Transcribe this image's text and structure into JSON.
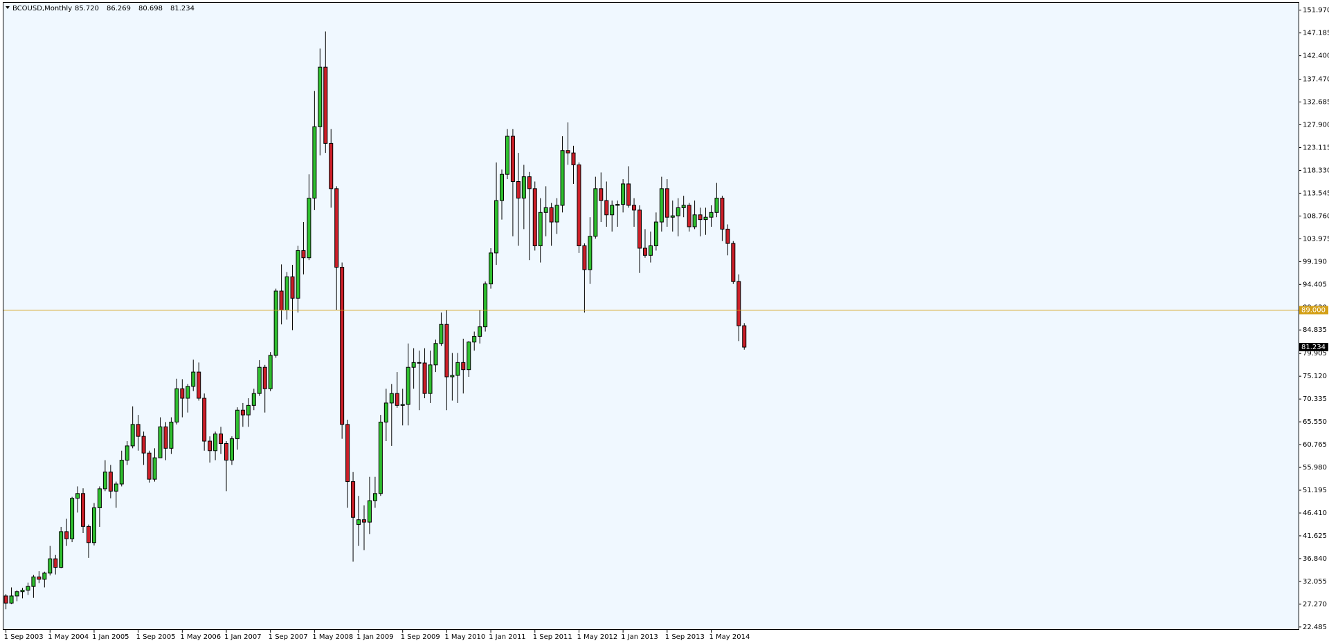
{
  "chart_data": {
    "type": "candlestick",
    "header": {
      "symbol": "BCOUSD,Monthly",
      "prices": [
        "85.720",
        "86.269",
        "80.698",
        "81.234"
      ]
    },
    "categories": [
      "1 Sep 2003",
      null,
      null,
      null,
      null,
      null,
      null,
      null,
      "1 May 2004",
      null,
      null,
      null,
      null,
      null,
      null,
      null,
      "1 Jan 2005",
      null,
      null,
      null,
      null,
      null,
      null,
      null,
      "1 Sep 2005",
      null,
      null,
      null,
      null,
      null,
      null,
      null,
      "1 May 2006",
      null,
      null,
      null,
      null,
      null,
      null,
      null,
      "1 Jan 2007",
      null,
      null,
      null,
      null,
      null,
      null,
      null,
      "1 Sep 2007",
      null,
      null,
      null,
      null,
      null,
      null,
      null,
      "1 May 2008",
      null,
      null,
      null,
      null,
      null,
      null,
      null,
      "1 Jan 2009",
      null,
      null,
      null,
      null,
      null,
      null,
      null,
      "1 Sep 2009",
      null,
      null,
      null,
      null,
      null,
      null,
      null,
      "1 May 2010",
      null,
      null,
      null,
      null,
      null,
      null,
      null,
      "1 Jan 2011",
      null,
      null,
      null,
      null,
      null,
      null,
      null,
      "1 Sep 2011",
      null,
      null,
      null,
      null,
      null,
      null,
      null,
      "1 May 2012",
      null,
      null,
      null,
      null,
      null,
      null,
      null,
      "1 Jan 2013",
      null,
      null,
      null,
      null,
      null,
      null,
      null,
      "1 Sep 2013",
      null,
      null,
      null,
      null,
      null,
      null,
      null,
      "1 May 2014",
      null,
      null,
      null,
      null,
      null,
      null
    ],
    "open": [
      29.0,
      27.5,
      29.0,
      29.9,
      30.2,
      31.0,
      33.0,
      32.5,
      33.8,
      36.8,
      35.0,
      42.5,
      41.0,
      49.5,
      50.5,
      43.6,
      40.2,
      47.5,
      51.5,
      55.0,
      51.0,
      52.5,
      57.5,
      60.5,
      65.0,
      62.5,
      59.0,
      53.5,
      58.0,
      64.5,
      60.0,
      65.5,
      72.5,
      70.5,
      73.0,
      76.0,
      70.5,
      61.5,
      59.5,
      63.0,
      61.0,
      57.5,
      62.0,
      68.0,
      67.0,
      69.0,
      71.5,
      77.0,
      72.5,
      79.5,
      93.0,
      89.0,
      96.0,
      91.5,
      101.5,
      100.0,
      112.5,
      127.5,
      140.0,
      124.0,
      114.5,
      98.0,
      65.0,
      53.0,
      44.0,
      45.0,
      44.5,
      49.0,
      50.5,
      65.5,
      69.5,
      71.5,
      69.0,
      69.2,
      77.0,
      78.0,
      77.9,
      71.5,
      77.5,
      82.0,
      86.0,
      75.0,
      75.3,
      78.0,
      76.5,
      82.3,
      83.5,
      85.5,
      94.5,
      101.0,
      112.0,
      117.5,
      125.5,
      116.0,
      112.5,
      117.0,
      114.5,
      102.5,
      109.5,
      110.5,
      107.5,
      111.0,
      122.5,
      122.0,
      119.5,
      102.5,
      97.5,
      104.5,
      114.5,
      112.0,
      109.0,
      111.0,
      111.2,
      115.5,
      111.0,
      110.0,
      102.0,
      100.5,
      102.5,
      107.5,
      114.5,
      108.5,
      108.8,
      110.5,
      111.0,
      106.5,
      109.0,
      108.0,
      108.5,
      109.5,
      112.5,
      106.0,
      103.0,
      95.0,
      85.72
    ],
    "high": [
      29.4,
      30.8,
      30.2,
      30.7,
      31.8,
      33.4,
      34.2,
      34.1,
      39.5,
      37.6,
      43.5,
      45.2,
      49.8,
      52.0,
      51.6,
      44.0,
      48.5,
      52.0,
      57.5,
      56.5,
      53.0,
      59.5,
      61.5,
      68.8,
      67.0,
      63.5,
      59.5,
      60.0,
      66.5,
      65.5,
      66.5,
      74.6,
      74.5,
      73.5,
      78.6,
      78.0,
      71.5,
      62.5,
      63.5,
      64.5,
      61.5,
      62.5,
      68.6,
      69.5,
      70.5,
      72.5,
      78.5,
      77.5,
      80.2,
      93.5,
      98.6,
      97.0,
      98.5,
      102.5,
      107.5,
      117.5,
      135.0,
      143.9,
      147.5,
      127.0,
      115.0,
      99.0,
      66.0,
      55.0,
      50.0,
      48.0,
      54.0,
      54.0,
      67.0,
      72.5,
      73.5,
      76.0,
      72.5,
      82.0,
      81.0,
      80.5,
      81.0,
      80.5,
      82.8,
      88.5,
      89.0,
      80.0,
      80.0,
      83.0,
      82.5,
      84.5,
      89.0,
      95.0,
      102.0,
      120.0,
      118.5,
      127.0,
      127.0,
      122.0,
      119.5,
      118.0,
      116.0,
      112.5,
      115.0,
      111.5,
      112.5,
      125.5,
      128.4,
      123.5,
      120.0,
      103.0,
      108.5,
      117.0,
      117.9,
      116.0,
      112.0,
      112.0,
      116.5,
      119.2,
      112.5,
      111.0,
      106.0,
      105.5,
      109.5,
      117.0,
      116.5,
      112.0,
      112.5,
      113.0,
      111.5,
      112.0,
      110.5,
      110.5,
      111.0,
      115.7,
      113.0,
      107.0,
      103.5,
      96.5,
      86.269
    ],
    "low": [
      26.2,
      27.3,
      27.9,
      28.5,
      29.2,
      28.6,
      31.7,
      30.8,
      33.3,
      33.5,
      34.8,
      39.5,
      40.3,
      46.5,
      42.2,
      37.0,
      39.6,
      43.5,
      51.0,
      49.5,
      47.5,
      52.0,
      56.5,
      60.0,
      59.5,
      56.5,
      52.8,
      53.0,
      58.0,
      57.5,
      58.8,
      65.0,
      66.5,
      67.5,
      72.0,
      70.0,
      59.5,
      57.0,
      57.5,
      58.8,
      51.0,
      56.5,
      59.7,
      64.5,
      64.5,
      68.0,
      71.0,
      67.5,
      72.0,
      79.0,
      86.0,
      87.0,
      84.8,
      88.5,
      96.5,
      99.5,
      110.0,
      121.5,
      122.0,
      110.5,
      89.0,
      62.0,
      47.5,
      36.2,
      39.5,
      38.6,
      42.0,
      47.5,
      50.0,
      61.5,
      60.5,
      68.5,
      64.8,
      64.8,
      72.5,
      68.0,
      70.5,
      69.5,
      76.0,
      81.5,
      68.0,
      70.0,
      69.5,
      71.5,
      75.0,
      80.5,
      82.0,
      84.5,
      93.5,
      98.5,
      108.0,
      116.5,
      104.5,
      102.5,
      106.0,
      99.5,
      101.5,
      99.0,
      104.5,
      102.5,
      105.0,
      109.5,
      119.5,
      115.5,
      101.0,
      88.5,
      94.5,
      104.0,
      107.5,
      106.5,
      105.5,
      106.5,
      109.5,
      110.5,
      106.5,
      96.8,
      100.0,
      99.0,
      101.5,
      105.5,
      106.5,
      105.5,
      104.5,
      108.5,
      105.5,
      106.0,
      104.5,
      104.8,
      106.5,
      108.5,
      103.5,
      100.5,
      94.5,
      82.5,
      80.698
    ],
    "close": [
      27.5,
      29.0,
      29.9,
      30.2,
      31.0,
      33.0,
      32.5,
      33.8,
      36.8,
      35.0,
      42.5,
      41.0,
      49.5,
      50.5,
      43.6,
      40.2,
      47.5,
      51.5,
      55.0,
      51.0,
      52.5,
      57.5,
      60.5,
      65.0,
      62.5,
      59.0,
      53.5,
      58.0,
      64.5,
      60.0,
      65.5,
      72.5,
      70.5,
      73.0,
      76.0,
      70.5,
      61.5,
      59.5,
      63.0,
      61.0,
      57.5,
      62.0,
      68.0,
      67.0,
      69.0,
      71.5,
      77.0,
      72.5,
      79.5,
      93.0,
      89.0,
      96.0,
      91.5,
      101.5,
      100.0,
      112.5,
      127.5,
      140.0,
      124.0,
      114.5,
      98.0,
      65.0,
      53.0,
      45.5,
      45.0,
      44.5,
      49.0,
      50.5,
      65.5,
      69.5,
      71.5,
      69.0,
      69.2,
      77.0,
      78.0,
      77.9,
      71.5,
      77.5,
      82.0,
      86.0,
      75.0,
      75.3,
      78.0,
      76.5,
      82.3,
      83.5,
      85.5,
      94.5,
      101.0,
      112.0,
      117.5,
      125.5,
      116.0,
      112.5,
      117.0,
      114.5,
      102.5,
      109.5,
      110.5,
      107.5,
      111.0,
      122.5,
      122.0,
      119.5,
      102.5,
      97.5,
      104.5,
      114.5,
      112.0,
      109.0,
      111.0,
      111.2,
      115.5,
      111.0,
      110.0,
      102.0,
      100.5,
      102.5,
      107.5,
      114.5,
      108.5,
      108.8,
      110.5,
      111.0,
      106.5,
      109.0,
      108.0,
      108.5,
      109.5,
      112.5,
      106.0,
      103.0,
      95.0,
      85.72,
      81.234
    ],
    "up_color": "#2fbf2f",
    "down_color": "#cc1f28",
    "ylim": [
      21.88,
      153.52
    ],
    "yticks": [
      {
        "value": 151.97,
        "label": "151.970"
      },
      {
        "value": 147.185,
        "label": "147.185"
      },
      {
        "value": 142.4,
        "label": "142.400"
      },
      {
        "value": 137.47,
        "label": "137.470"
      },
      {
        "value": 132.685,
        "label": "132.685"
      },
      {
        "value": 127.9,
        "label": "127.900"
      },
      {
        "value": 123.115,
        "label": "123.115"
      },
      {
        "value": 118.33,
        "label": "118.330"
      },
      {
        "value": 113.545,
        "label": "113.545"
      },
      {
        "value": 108.76,
        "label": "108.760"
      },
      {
        "value": 103.975,
        "label": "103.975"
      },
      {
        "value": 99.19,
        "label": "99.190"
      },
      {
        "value": 94.405,
        "label": "94.405"
      },
      {
        "value": 89.62,
        "label": "89.620"
      },
      {
        "value": 84.835,
        "label": "84.835"
      },
      {
        "value": 79.905,
        "label": "79.905"
      },
      {
        "value": 75.12,
        "label": "75.120"
      },
      {
        "value": 70.335,
        "label": "70.335"
      },
      {
        "value": 65.55,
        "label": "65.550"
      },
      {
        "value": 60.765,
        "label": "60.765"
      },
      {
        "value": 55.98,
        "label": "55.980"
      },
      {
        "value": 51.195,
        "label": "51.195"
      },
      {
        "value": 46.41,
        "label": "46.410"
      },
      {
        "value": 41.625,
        "label": "41.625"
      },
      {
        "value": 36.84,
        "label": "36.840"
      },
      {
        "value": 32.055,
        "label": "32.055"
      },
      {
        "value": 27.27,
        "label": "27.270"
      },
      {
        "value": 22.485,
        "label": "22.485"
      }
    ],
    "hline": {
      "value": 89.0,
      "label": "89.000",
      "color": "#d4a017"
    },
    "last_price": {
      "value": 81.234,
      "label": "81.234"
    }
  }
}
